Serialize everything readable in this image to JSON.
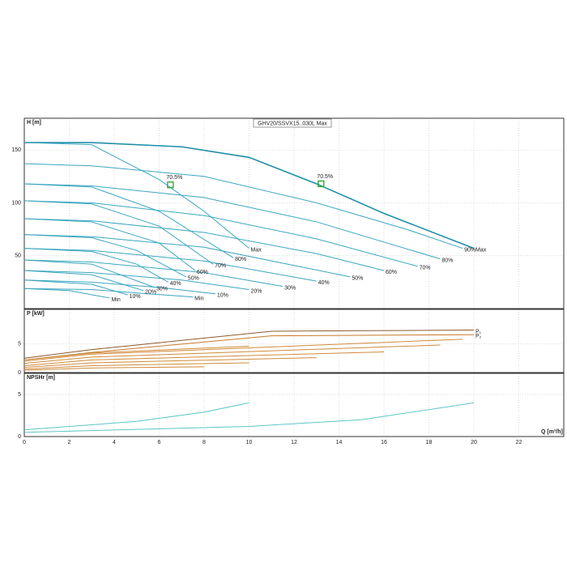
{
  "chart_data": [
    {
      "type": "line",
      "title": "GHV20/SSVX15..030L Max",
      "ylabel": "H [m]",
      "ylim": [
        0,
        180
      ],
      "yticks": [
        50,
        100,
        150
      ],
      "xlim": [
        0,
        24
      ],
      "grid": true,
      "series": [
        {
          "name": "Max",
          "color": "#1f8fa8",
          "x": [
            0,
            3,
            7,
            10,
            13,
            16,
            20
          ],
          "values": [
            157,
            157,
            153,
            143,
            118,
            90,
            57
          ]
        },
        {
          "name": "90%",
          "color": "#3aa6c0",
          "x": [
            0,
            3,
            8,
            13,
            17,
            19.5
          ],
          "values": [
            137,
            135,
            125,
            100,
            75,
            57
          ]
        },
        {
          "name": "80%",
          "color": "#3aa6c0",
          "x": [
            0,
            3,
            8,
            13,
            18.5
          ],
          "values": [
            118,
            116,
            105,
            82,
            47
          ]
        },
        {
          "name": "70%",
          "color": "#3aa6c0",
          "x": [
            0,
            3,
            8,
            13,
            17.5
          ],
          "values": [
            102,
            100,
            88,
            66,
            40
          ]
        },
        {
          "name": "60%",
          "color": "#3aa6c0",
          "x": [
            0,
            3,
            8,
            13,
            16
          ],
          "values": [
            85,
            83,
            72,
            52,
            36
          ]
        },
        {
          "name": "50%",
          "color": "#3aa6c0",
          "x": [
            0,
            3,
            8,
            14.5
          ],
          "values": [
            70,
            68,
            58,
            30
          ]
        },
        {
          "name": "40%",
          "color": "#3aa6c0",
          "x": [
            0,
            3,
            8,
            13
          ],
          "values": [
            57,
            55,
            45,
            26
          ]
        },
        {
          "name": "30%",
          "color": "#3aa6c0",
          "x": [
            0,
            3,
            8,
            11.5
          ],
          "values": [
            46,
            44,
            34,
            21
          ]
        },
        {
          "name": "20%",
          "color": "#3aa6c0",
          "x": [
            0,
            3,
            7,
            10
          ],
          "values": [
            36,
            34,
            27,
            18
          ]
        },
        {
          "name": "10%",
          "color": "#3aa6c0",
          "x": [
            0,
            3,
            6,
            8.5
          ],
          "values": [
            27,
            25,
            20,
            14
          ]
        },
        {
          "name": "Min",
          "color": "#3aa6c0",
          "x": [
            0,
            3,
            5.5,
            7.5
          ],
          "values": [
            19,
            18,
            14,
            11
          ]
        },
        {
          "name": "Max",
          "color": "#3aa6c0",
          "x": [
            0,
            3,
            6,
            8,
            10
          ],
          "values": [
            157,
            155,
            122,
            92,
            57
          ]
        },
        {
          "name": "80%",
          "color": "#3aa6c0",
          "x": [
            0,
            3,
            6,
            9.3
          ],
          "values": [
            118,
            115,
            92,
            48
          ]
        },
        {
          "name": "70%",
          "color": "#3aa6c0",
          "x": [
            0,
            3,
            6,
            8.4
          ],
          "values": [
            102,
            99,
            78,
            42
          ]
        },
        {
          "name": "60%",
          "color": "#3aa6c0",
          "x": [
            0,
            3,
            6,
            7.6
          ],
          "values": [
            85,
            82,
            62,
            36
          ]
        },
        {
          "name": "50%",
          "color": "#3aa6c0",
          "x": [
            0,
            3,
            5,
            7.2
          ],
          "values": [
            70,
            67,
            55,
            30
          ]
        },
        {
          "name": "40%",
          "color": "#3aa6c0",
          "x": [
            0,
            3,
            5,
            6.4
          ],
          "values": [
            57,
            54,
            42,
            25
          ]
        },
        {
          "name": "30%",
          "color": "#3aa6c0",
          "x": [
            0,
            3,
            5.8
          ],
          "values": [
            46,
            42,
            20
          ]
        },
        {
          "name": "20%",
          "color": "#3aa6c0",
          "x": [
            0,
            3,
            5.3
          ],
          "values": [
            36,
            32,
            17
          ]
        },
        {
          "name": "10%",
          "color": "#3aa6c0",
          "x": [
            0,
            3,
            4.6
          ],
          "values": [
            27,
            23,
            13
          ]
        },
        {
          "name": "Min",
          "color": "#3aa6c0",
          "x": [
            0,
            2,
            3.8
          ],
          "values": [
            19,
            17,
            10
          ]
        }
      ],
      "annotations": [
        {
          "x": 6.5,
          "y": 117,
          "label": "70.5%"
        },
        {
          "x": 13.2,
          "y": 118,
          "label": "70.5%"
        }
      ]
    },
    {
      "type": "line",
      "ylabel": "P [kW]",
      "ylim": [
        0,
        11
      ],
      "yticks": [
        0,
        5
      ],
      "xlim": [
        0,
        24
      ],
      "grid": true,
      "series": [
        {
          "name": "P₁",
          "color": "#8b5a2b",
          "x": [
            0,
            3,
            11,
            20
          ],
          "values": [
            2.5,
            4,
            7.2,
            7.4
          ]
        },
        {
          "name": "P₂",
          "color": "#c8782a",
          "x": [
            0,
            3,
            11,
            20
          ],
          "values": [
            2.2,
            3.5,
            6.4,
            6.6
          ]
        },
        {
          "color": "#d08a3a",
          "x": [
            0,
            3,
            19.5
          ],
          "values": [
            2,
            3.2,
            5.8
          ]
        },
        {
          "color": "#d08a3a",
          "x": [
            0,
            3,
            18.5
          ],
          "values": [
            1.6,
            2.7,
            4.8
          ]
        },
        {
          "color": "#d08a3a",
          "x": [
            0,
            3,
            16
          ],
          "values": [
            1.2,
            2.2,
            3.6
          ]
        },
        {
          "color": "#d08a3a",
          "x": [
            0,
            3,
            13
          ],
          "values": [
            0.9,
            1.7,
            2.6
          ]
        },
        {
          "color": "#d08a3a",
          "x": [
            0,
            3,
            10
          ],
          "values": [
            0.6,
            1.2,
            1.7
          ]
        },
        {
          "color": "#d08a3a",
          "x": [
            0,
            3,
            10
          ],
          "values": [
            2.2,
            3.4,
            4.6
          ]
        },
        {
          "color": "#d08a3a",
          "x": [
            0,
            3,
            8
          ],
          "values": [
            0.4,
            0.8,
            1
          ]
        }
      ]
    },
    {
      "type": "line",
      "ylabel": "NPSHr [m]",
      "xlabel": "Q [m³/h]",
      "ylim": [
        0,
        7.5
      ],
      "yticks": [
        0,
        5
      ],
      "xlim": [
        0,
        24
      ],
      "xticks": [
        0,
        2,
        4,
        6,
        8,
        10,
        12,
        14,
        16,
        18,
        20,
        22
      ],
      "grid": true,
      "series": [
        {
          "color": "#5cc6c6",
          "x": [
            0,
            5,
            8,
            10
          ],
          "values": [
            0.8,
            1.8,
            2.9,
            4
          ]
        },
        {
          "color": "#5cc6c6",
          "x": [
            0,
            10,
            15,
            20
          ],
          "values": [
            0.5,
            1.2,
            2,
            4
          ]
        }
      ]
    }
  ]
}
